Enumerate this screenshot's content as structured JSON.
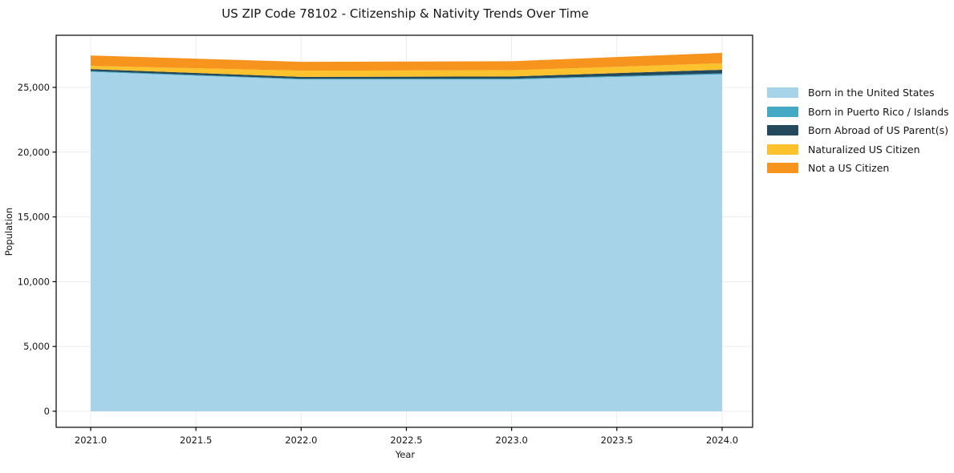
{
  "chart_data": {
    "type": "area",
    "stacked": true,
    "title": "US ZIP Code 78102 - Citizenship & Nativity Trends Over Time",
    "xlabel": "Year",
    "ylabel": "Population",
    "x": [
      2021,
      2022,
      2023,
      2024
    ],
    "series": [
      {
        "name": "Born in the United States",
        "color": "#A6D3E8",
        "values": [
          26200,
          25600,
          25600,
          26000
        ]
      },
      {
        "name": "Born in Puerto Rico / Islands",
        "color": "#45A9C6",
        "values": [
          60,
          60,
          60,
          80
        ]
      },
      {
        "name": "Born Abroad of US Parent(s)",
        "color": "#24495C",
        "values": [
          150,
          150,
          180,
          280
        ]
      },
      {
        "name": "Naturalized US Citizen",
        "color": "#FCC22D",
        "values": [
          250,
          480,
          480,
          500
        ]
      },
      {
        "name": "Not a US Citizen",
        "color": "#F7941E",
        "values": [
          800,
          680,
          700,
          800
        ]
      }
    ],
    "x_ticks": {
      "values": [
        2021.0,
        2021.5,
        2022.0,
        2022.5,
        2023.0,
        2023.5,
        2024.0
      ],
      "labels": [
        "2021.0",
        "2021.5",
        "2022.0",
        "2022.5",
        "2023.0",
        "2023.5",
        "2024.0"
      ]
    },
    "y_ticks": {
      "values": [
        0,
        5000,
        10000,
        15000,
        20000,
        25000
      ],
      "labels": [
        "0",
        "5,000",
        "10,000",
        "15,000",
        "20,000",
        "25,000"
      ]
    },
    "xlim": [
      2020.836,
      2024.145
    ],
    "ylim": [
      -1240,
      29020
    ],
    "grid": true,
    "grid_color": "#ececec",
    "axis_color": "#000000",
    "text_color": "#151515",
    "background": "#ffffff",
    "legend_position": "right-outside"
  }
}
